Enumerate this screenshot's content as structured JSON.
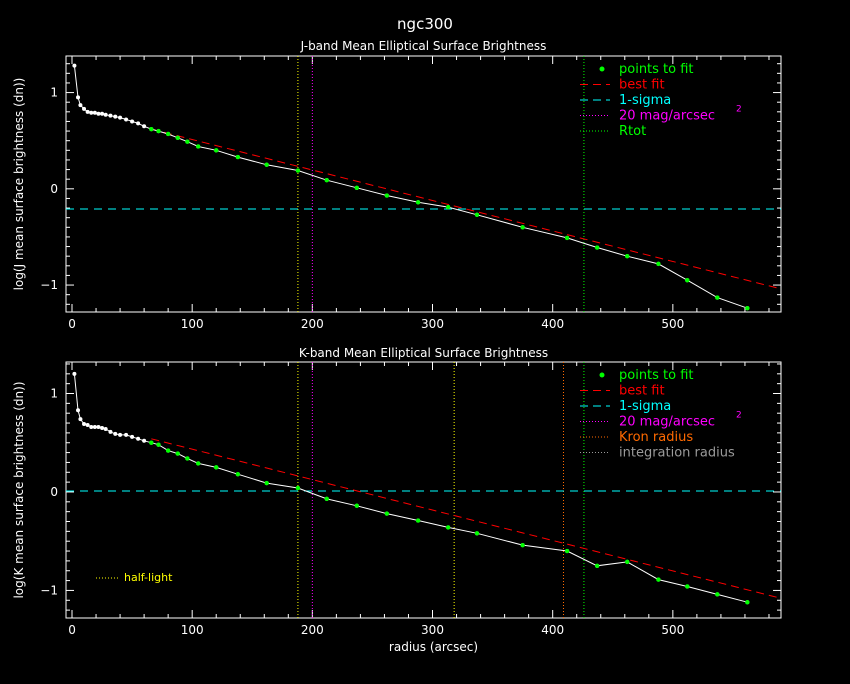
{
  "figure": {
    "title": "ngc300"
  },
  "chart_data": [
    {
      "type": "line",
      "title": "J-band Mean Elliptical Surface Brightness",
      "xlabel": "",
      "ylabel": "log(J mean surface brightness (dn))",
      "xlim": [
        -5,
        590
      ],
      "ylim": [
        -1.28,
        1.38
      ],
      "xticks": [
        0,
        100,
        200,
        300,
        400,
        500
      ],
      "yticks": [
        -1,
        0,
        1
      ],
      "legend_position": "top-right",
      "legend": [
        {
          "label": "points to fit",
          "color": "#00ff00",
          "style": "dot"
        },
        {
          "label": "best fit",
          "color": "#ff0000",
          "style": "dash"
        },
        {
          "label": "1-sigma",
          "color": "#00ffff",
          "style": "dash"
        },
        {
          "label": "20 mag/arcsec",
          "sup": "2",
          "color": "#ff00ff",
          "style": "dot"
        },
        {
          "label": "Rtot",
          "color": "#00ff00",
          "style": "dot"
        }
      ],
      "profile_x": [
        2,
        5,
        7,
        10,
        13,
        16,
        19,
        22,
        25,
        28,
        32,
        36,
        40,
        45,
        50,
        55,
        60,
        66,
        72,
        80,
        88,
        96,
        105,
        120,
        138,
        162,
        188,
        212,
        237,
        262,
        288,
        313,
        337,
        375,
        412,
        437,
        462,
        488,
        512,
        537,
        562
      ],
      "profile_y": [
        1.28,
        0.95,
        0.87,
        0.83,
        0.8,
        0.79,
        0.79,
        0.78,
        0.78,
        0.77,
        0.76,
        0.75,
        0.74,
        0.72,
        0.7,
        0.68,
        0.65,
        0.62,
        0.6,
        0.57,
        0.53,
        0.49,
        0.44,
        0.4,
        0.33,
        0.25,
        0.19,
        0.09,
        0.01,
        -0.07,
        -0.14,
        -0.19,
        -0.27,
        -0.4,
        -0.51,
        -0.61,
        -0.7,
        -0.78,
        -0.95,
        -1.13,
        -1.24
      ],
      "fit_points_x": [
        66,
        72,
        80,
        88,
        96,
        105,
        120,
        138,
        162,
        188,
        212,
        237,
        262,
        288,
        313,
        337,
        375,
        412,
        437,
        462,
        488,
        512,
        537,
        562
      ],
      "fit_points_y": [
        0.62,
        0.6,
        0.57,
        0.53,
        0.49,
        0.44,
        0.4,
        0.33,
        0.25,
        0.19,
        0.09,
        0.01,
        -0.07,
        -0.14,
        -0.19,
        -0.27,
        -0.4,
        -0.51,
        -0.61,
        -0.7,
        -0.78,
        -0.95,
        -1.13,
        -1.24
      ],
      "best_fit": {
        "x0": 66,
        "y0": 0.62,
        "x1": 590,
        "y1": -1.04
      },
      "sigma_y": -0.21,
      "vlines": [
        {
          "x": 188,
          "color": "#ffff00"
        },
        {
          "x": 200,
          "color": "#ff00ff"
        },
        {
          "x": 426,
          "color": "#00ff00"
        }
      ],
      "annotation": null
    },
    {
      "type": "line",
      "title": "K-band Mean Elliptical Surface Brightness",
      "xlabel": "radius (arcsec)",
      "ylabel": "log(K mean surface brightness (dn))",
      "xlim": [
        -5,
        590
      ],
      "ylim": [
        -1.28,
        1.32
      ],
      "xticks": [
        0,
        100,
        200,
        300,
        400,
        500
      ],
      "yticks": [
        -1,
        0,
        1
      ],
      "legend_position": "top-right",
      "legend": [
        {
          "label": "points to fit",
          "color": "#00ff00",
          "style": "dot"
        },
        {
          "label": "best fit",
          "color": "#ff0000",
          "style": "dash"
        },
        {
          "label": "1-sigma",
          "color": "#00ffff",
          "style": "dash"
        },
        {
          "label": "20 mag/arcsec",
          "sup": "2",
          "color": "#ff00ff",
          "style": "dot"
        },
        {
          "label": "Kron radius",
          "color": "#ff6a00",
          "style": "dot"
        },
        {
          "label": "integration radius",
          "color": "#9a9a9a",
          "style": "dot"
        }
      ],
      "profile_x": [
        2,
        5,
        7,
        10,
        13,
        16,
        19,
        22,
        25,
        28,
        32,
        36,
        40,
        45,
        50,
        55,
        60,
        66,
        72,
        80,
        88,
        96,
        105,
        120,
        138,
        162,
        188,
        212,
        237,
        262,
        288,
        313,
        337,
        375,
        412,
        437,
        462,
        488,
        512,
        537,
        562
      ],
      "profile_y": [
        1.2,
        0.83,
        0.74,
        0.69,
        0.68,
        0.66,
        0.66,
        0.66,
        0.65,
        0.64,
        0.61,
        0.59,
        0.58,
        0.58,
        0.56,
        0.54,
        0.52,
        0.5,
        0.48,
        0.42,
        0.39,
        0.34,
        0.29,
        0.25,
        0.18,
        0.09,
        0.04,
        -0.07,
        -0.14,
        -0.22,
        -0.29,
        -0.36,
        -0.42,
        -0.54,
        -0.6,
        -0.75,
        -0.71,
        -0.89,
        -0.96,
        -1.04,
        -1.12
      ],
      "fit_points_x": [
        66,
        72,
        80,
        88,
        96,
        105,
        120,
        138,
        162,
        188,
        212,
        237,
        262,
        288,
        313,
        337,
        375,
        412,
        437,
        462,
        488,
        512,
        537,
        562
      ],
      "fit_points_y": [
        0.5,
        0.48,
        0.42,
        0.39,
        0.34,
        0.29,
        0.25,
        0.18,
        0.09,
        0.04,
        -0.07,
        -0.14,
        -0.22,
        -0.29,
        -0.36,
        -0.42,
        -0.54,
        -0.6,
        -0.75,
        -0.71,
        -0.89,
        -0.96,
        -1.04,
        -1.12
      ],
      "best_fit": {
        "x0": 66,
        "y0": 0.54,
        "x1": 590,
        "y1": -1.08
      },
      "sigma_y": 0.01,
      "vlines": [
        {
          "x": 188,
          "color": "#ffff00"
        },
        {
          "x": 200,
          "color": "#ff00ff"
        },
        {
          "x": 318,
          "color": "#ffff00"
        },
        {
          "x": 409,
          "color": "#ff6a00"
        },
        {
          "x": 426,
          "color": "#00ff00"
        }
      ],
      "annotation": {
        "text": "half-light",
        "color": "#ffff00"
      }
    }
  ]
}
